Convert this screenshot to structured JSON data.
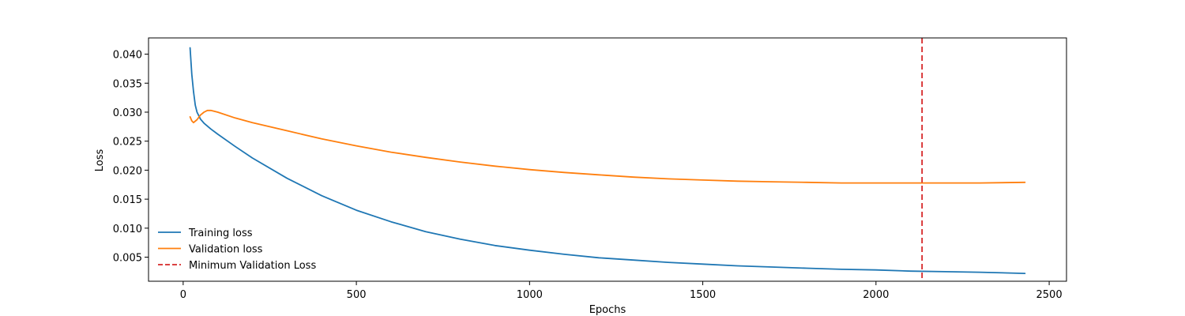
{
  "chart_data": {
    "type": "line",
    "title": "",
    "xlabel": "Epochs",
    "ylabel": "Loss",
    "xlim": [
      -100,
      2550
    ],
    "ylim": [
      0.00085,
      0.0428
    ],
    "xticks": [
      0,
      500,
      1000,
      1500,
      2000,
      2500
    ],
    "yticks": [
      0.005,
      0.01,
      0.015,
      0.02,
      0.025,
      0.03,
      0.035,
      0.04
    ],
    "grid": false,
    "legend_position": "lower-left",
    "series": [
      {
        "name": "Training loss",
        "color": "#1f77b4",
        "x": [
          20,
          25,
          30,
          35,
          40,
          50,
          60,
          80,
          100,
          150,
          200,
          300,
          400,
          500,
          600,
          700,
          800,
          900,
          1000,
          1100,
          1200,
          1300,
          1400,
          1500,
          1600,
          1700,
          1800,
          1900,
          2000,
          2100,
          2200,
          2300,
          2430
        ],
        "y": [
          0.0411,
          0.0365,
          0.0335,
          0.0312,
          0.03,
          0.0288,
          0.0281,
          0.0271,
          0.0262,
          0.0241,
          0.0221,
          0.0186,
          0.0156,
          0.0131,
          0.0111,
          0.0094,
          0.0081,
          0.007,
          0.0062,
          0.0055,
          0.0049,
          0.0045,
          0.0041,
          0.0038,
          0.0035,
          0.0033,
          0.0031,
          0.0029,
          0.0028,
          0.0026,
          0.0025,
          0.0024,
          0.0022
        ]
      },
      {
        "name": "Validation loss",
        "color": "#ff7f0e",
        "x": [
          20,
          25,
          30,
          40,
          50,
          60,
          70,
          80,
          100,
          150,
          200,
          300,
          400,
          500,
          600,
          700,
          800,
          900,
          1000,
          1100,
          1200,
          1300,
          1400,
          1500,
          1600,
          1700,
          1800,
          1900,
          2000,
          2100,
          2133,
          2200,
          2300,
          2430
        ],
        "y": [
          0.0292,
          0.0285,
          0.0282,
          0.0287,
          0.0295,
          0.03,
          0.0303,
          0.0303,
          0.03,
          0.029,
          0.0282,
          0.0268,
          0.0254,
          0.0242,
          0.0231,
          0.0222,
          0.0214,
          0.0207,
          0.0201,
          0.0196,
          0.0192,
          0.0188,
          0.0185,
          0.0183,
          0.0181,
          0.018,
          0.0179,
          0.0178,
          0.0178,
          0.0178,
          0.0178,
          0.0178,
          0.0178,
          0.0179
        ]
      }
    ],
    "vline": {
      "name": "Minimum Validation Loss",
      "x": 2133,
      "color": "#d62728",
      "style": "dashed"
    }
  }
}
